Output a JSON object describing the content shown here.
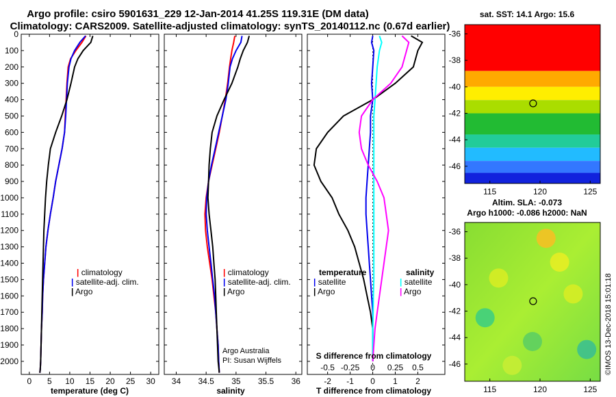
{
  "title_lines": [
    "Argo profile: csiro 5901631_229 12-Jan-2014 41.25S 119.31E (DM data)",
    "Climatology: CARS2009. Satellite-adjusted climatology: synTS_20140112.nc (0.67d earlier)"
  ],
  "colors": {
    "climatology": "#ff0000",
    "satellite": "#0000ee",
    "argo": "#000000",
    "salinity_satellite": "#00ffff",
    "salinity_argo": "#ff00ff"
  },
  "chart_data": [
    {
      "type": "line",
      "id": "temperature",
      "xlabel": "temperature (deg C)",
      "xlim": [
        -2,
        32
      ],
      "ylim": [
        2080,
        0
      ],
      "y_inverted": true,
      "xticks": [
        "0",
        "5",
        "10",
        "15",
        "20",
        "25",
        "30"
      ],
      "xtick_values": [
        0,
        5,
        10,
        15,
        20,
        25,
        30
      ],
      "yticks": [
        "0",
        "100",
        "200",
        "300",
        "400",
        "500",
        "600",
        "700",
        "800",
        "900",
        "1000",
        "1100",
        "1200",
        "1300",
        "1400",
        "1500",
        "1600",
        "1700",
        "1800",
        "1900",
        "2000"
      ],
      "legend": [
        "climatology",
        "satellite-adj. clim.",
        "Argo"
      ],
      "series": [
        {
          "name": "climatology",
          "color": "#ff0000",
          "x": [
            14.0,
            13.0,
            11.5,
            10.2,
            9.6,
            9.3,
            9.1,
            8.9,
            8.7,
            8.1,
            7.3,
            6.5,
            5.9,
            5.2,
            4.6,
            4.1,
            3.8,
            3.5,
            3.3,
            3.2,
            3.0,
            2.9,
            2.8,
            2.7,
            2.6
          ],
          "y": [
            10,
            50,
            100,
            150,
            200,
            300,
            400,
            500,
            600,
            700,
            800,
            900,
            1000,
            1100,
            1200,
            1300,
            1400,
            1500,
            1600,
            1700,
            1800,
            1900,
            2000,
            2050,
            2070
          ]
        },
        {
          "name": "satellite-adj. clim.",
          "color": "#0000ee",
          "x": [
            13.9,
            12.5,
            11.2,
            10.3,
            9.8,
            9.4,
            9.2,
            9.0,
            8.7,
            8.1,
            7.3,
            6.5,
            5.9,
            5.2,
            4.6,
            4.1,
            3.8,
            3.5,
            3.3,
            3.2,
            3.0,
            2.9,
            2.8,
            2.7,
            2.6
          ],
          "y": [
            10,
            50,
            100,
            150,
            200,
            300,
            400,
            500,
            600,
            700,
            800,
            900,
            1000,
            1100,
            1200,
            1300,
            1400,
            1500,
            1600,
            1700,
            1800,
            1900,
            2000,
            2050,
            2070
          ]
        },
        {
          "name": "Argo",
          "color": "#000000",
          "x": [
            15.7,
            15.2,
            13.3,
            12.0,
            11.2,
            10.3,
            9.3,
            8.0,
            6.5,
            5.2,
            4.7,
            4.3,
            4.0,
            3.8,
            3.6,
            3.5,
            3.4,
            3.3,
            3.2,
            3.1,
            3.0,
            2.9,
            2.8,
            2.7,
            2.6
          ],
          "y": [
            10,
            50,
            100,
            150,
            200,
            300,
            400,
            500,
            600,
            700,
            800,
            900,
            1000,
            1100,
            1200,
            1300,
            1400,
            1500,
            1600,
            1700,
            1800,
            1900,
            2000,
            2050,
            2070
          ]
        }
      ]
    },
    {
      "type": "line",
      "id": "salinity",
      "xlabel": "salinity",
      "xlim": [
        33.8,
        36.1
      ],
      "ylim": [
        2080,
        0
      ],
      "y_inverted": true,
      "xticks": [
        "34",
        "34.5",
        "35",
        "35.5",
        "36"
      ],
      "xtick_values": [
        34,
        34.5,
        35,
        35.5,
        36
      ],
      "legend": [
        "climatology",
        "satellite-adj. clim.",
        "Argo"
      ],
      "credit_lines": [
        "Argo Australia",
        "PI: Susan Wijffels"
      ],
      "series": [
        {
          "name": "climatology",
          "color": "#ff0000",
          "x": [
            34.98,
            34.96,
            34.93,
            34.91,
            34.89,
            34.86,
            34.82,
            34.77,
            34.72,
            34.66,
            34.6,
            34.54,
            34.5,
            34.48,
            34.49,
            34.52,
            34.56,
            34.6,
            34.63,
            34.66,
            34.68,
            34.7,
            34.71,
            34.72
          ],
          "y": [
            10,
            50,
            100,
            150,
            200,
            300,
            400,
            500,
            600,
            700,
            800,
            900,
            1000,
            1100,
            1200,
            1300,
            1400,
            1500,
            1600,
            1700,
            1800,
            1900,
            2000,
            2070
          ]
        },
        {
          "name": "satellite-adj. clim.",
          "color": "#0000ee",
          "x": [
            35.1,
            35.08,
            35.0,
            34.94,
            34.9,
            34.87,
            34.83,
            34.77,
            34.71,
            34.65,
            34.59,
            34.54,
            34.51,
            34.5,
            34.52,
            34.55,
            34.58,
            34.61,
            34.64,
            34.66,
            34.68,
            34.7,
            34.71,
            34.72
          ],
          "y": [
            10,
            50,
            100,
            150,
            200,
            300,
            400,
            500,
            600,
            700,
            800,
            900,
            1000,
            1100,
            1200,
            1300,
            1400,
            1500,
            1600,
            1700,
            1800,
            1900,
            2000,
            2070
          ]
        },
        {
          "name": "Argo",
          "color": "#000000",
          "x": [
            35.22,
            35.19,
            35.12,
            35.07,
            35.03,
            34.93,
            34.8,
            34.68,
            34.6,
            34.57,
            34.55,
            34.54,
            34.53,
            34.55,
            34.58,
            34.61,
            34.63,
            34.65,
            34.66,
            34.67,
            34.68,
            34.69,
            34.7,
            34.72
          ],
          "y": [
            10,
            50,
            100,
            150,
            200,
            300,
            400,
            500,
            600,
            700,
            800,
            900,
            1000,
            1100,
            1200,
            1300,
            1400,
            1500,
            1600,
            1700,
            1800,
            1900,
            2000,
            2070
          ]
        }
      ]
    },
    {
      "type": "line",
      "id": "difference",
      "xlabel": "T difference from climatology",
      "xlabel_top": "S difference from climatology",
      "xlim": [
        -2.9,
        3.2
      ],
      "ylim": [
        2080,
        0
      ],
      "y_inverted": true,
      "xticks": [
        "-2",
        "-1",
        "0",
        "1",
        "2"
      ],
      "xtick_values": [
        -2,
        -1,
        0,
        1,
        2
      ],
      "xticks_top": [
        "-0.5",
        "-0.25",
        "0",
        "0.25",
        "0.5"
      ],
      "xtick_top_values": [
        -0.5,
        -0.25,
        0,
        0.25,
        0.5
      ],
      "legend_left_title": "temperature",
      "legend_left": [
        "satellite",
        "Argo"
      ],
      "legend_right_title": "salinity",
      "legend_right": [
        "satellite",
        "Argo"
      ],
      "series": [
        {
          "name": "satellite",
          "group": "temperature",
          "color": "#0000ee",
          "x": [
            0.0,
            -0.05,
            0.05,
            0.0,
            -0.05,
            0.0,
            -0.1,
            -0.1,
            -0.15,
            -0.2,
            -0.25,
            -0.3,
            -0.3,
            -0.25,
            -0.2,
            -0.15,
            -0.1,
            -0.05,
            0.0,
            0.0,
            0.0,
            0.0
          ],
          "y": [
            10,
            50,
            100,
            200,
            300,
            400,
            500,
            600,
            700,
            800,
            900,
            1000,
            1100,
            1200,
            1300,
            1400,
            1500,
            1600,
            1700,
            1800,
            1900,
            2000
          ]
        },
        {
          "name": "Argo",
          "group": "temperature",
          "color": "#000000",
          "x": [
            1.7,
            2.2,
            2.0,
            1.8,
            1.0,
            0.0,
            -1.3,
            -2.0,
            -2.5,
            -2.6,
            -2.3,
            -1.8,
            -1.5,
            -1.1,
            -0.8,
            -0.6,
            -0.4,
            -0.25,
            -0.1,
            0.0,
            0.0,
            0.0
          ],
          "y": [
            10,
            50,
            100,
            200,
            300,
            400,
            500,
            600,
            700,
            800,
            900,
            1000,
            1100,
            1200,
            1300,
            1400,
            1500,
            1600,
            1700,
            1800,
            1900,
            2000
          ]
        },
        {
          "name": "satellite",
          "group": "salinity",
          "color": "#00ffff",
          "x": [
            0.3,
            0.4,
            0.3,
            0.2,
            0.15,
            0.1,
            0.05,
            0.05,
            0.05,
            0.05,
            0.05,
            0.05,
            0.05,
            0.05,
            0.05,
            0.05,
            0.05,
            0.03,
            0.02,
            0.0,
            0.0,
            0.0
          ],
          "y": [
            10,
            50,
            100,
            200,
            300,
            400,
            500,
            600,
            700,
            800,
            900,
            1000,
            1100,
            1200,
            1300,
            1400,
            1500,
            1600,
            1700,
            1800,
            1900,
            2000
          ]
        },
        {
          "name": "Argo",
          "group": "salinity",
          "color": "#ff00ff",
          "x": [
            1.3,
            1.6,
            1.5,
            1.3,
            0.8,
            0.0,
            -0.5,
            -0.6,
            -0.5,
            -0.2,
            0.2,
            0.5,
            0.6,
            0.7,
            0.6,
            0.5,
            0.4,
            0.3,
            0.2,
            0.1,
            0.05,
            0.0
          ],
          "y": [
            10,
            50,
            100,
            200,
            300,
            400,
            500,
            600,
            700,
            800,
            900,
            1000,
            1100,
            1200,
            1300,
            1400,
            1500,
            1600,
            1700,
            1800,
            1900,
            2000
          ]
        }
      ]
    },
    {
      "type": "heatmap",
      "id": "sst_map",
      "title": "sat. SST: 14.1 Argo: 15.6",
      "xlim": [
        112.5,
        126
      ],
      "ylim": [
        -47.3,
        -35.3
      ],
      "xticks": [
        "115",
        "120",
        "125"
      ],
      "xtick_values": [
        115,
        120,
        125
      ],
      "yticks": [
        "-36",
        "-38",
        "-40",
        "-42",
        "-44",
        "-46"
      ],
      "ytick_values": [
        -36,
        -38,
        -40,
        -42,
        -44,
        -46
      ],
      "marker": {
        "lon": 119.31,
        "lat": -41.25
      },
      "bands": [
        {
          "color": "#ff0000",
          "lat_from": -35.3,
          "lat_to": -38.8
        },
        {
          "color": "#ffaa00",
          "lat_from": -38.8,
          "lat_to": -40.0
        },
        {
          "color": "#ffee00",
          "lat_from": -40.0,
          "lat_to": -41.0
        },
        {
          "color": "#aadd00",
          "lat_from": -41.0,
          "lat_to": -42.0
        },
        {
          "color": "#22bb33",
          "lat_from": -42.0,
          "lat_to": -43.6
        },
        {
          "color": "#22cc99",
          "lat_from": -43.6,
          "lat_to": -44.6
        },
        {
          "color": "#22bbff",
          "lat_from": -44.6,
          "lat_to": -45.6
        },
        {
          "color": "#3377ff",
          "lat_from": -45.6,
          "lat_to": -46.5
        },
        {
          "color": "#1122dd",
          "lat_from": -46.5,
          "lat_to": -47.3
        }
      ]
    },
    {
      "type": "heatmap",
      "id": "sla_map",
      "title_lines": [
        "Altim. SLA: -0.073",
        "Argo h1000: -0.086 h2000: NaN"
      ],
      "xlim": [
        112.5,
        126
      ],
      "ylim": [
        -47.3,
        -35.3
      ],
      "xticks": [
        "115",
        "120",
        "125"
      ],
      "xtick_values": [
        115,
        120,
        125
      ],
      "yticks": [
        "-36",
        "-38",
        "-40",
        "-42",
        "-44",
        "-46"
      ],
      "ytick_values": [
        -36,
        -38,
        -40,
        -42,
        -44,
        -46
      ],
      "marker": {
        "lon": 119.31,
        "lat": -41.25
      },
      "background": "#7ddc3a"
    }
  ],
  "side_text": "©IMOS 13-Dec-2018 15:01:18"
}
